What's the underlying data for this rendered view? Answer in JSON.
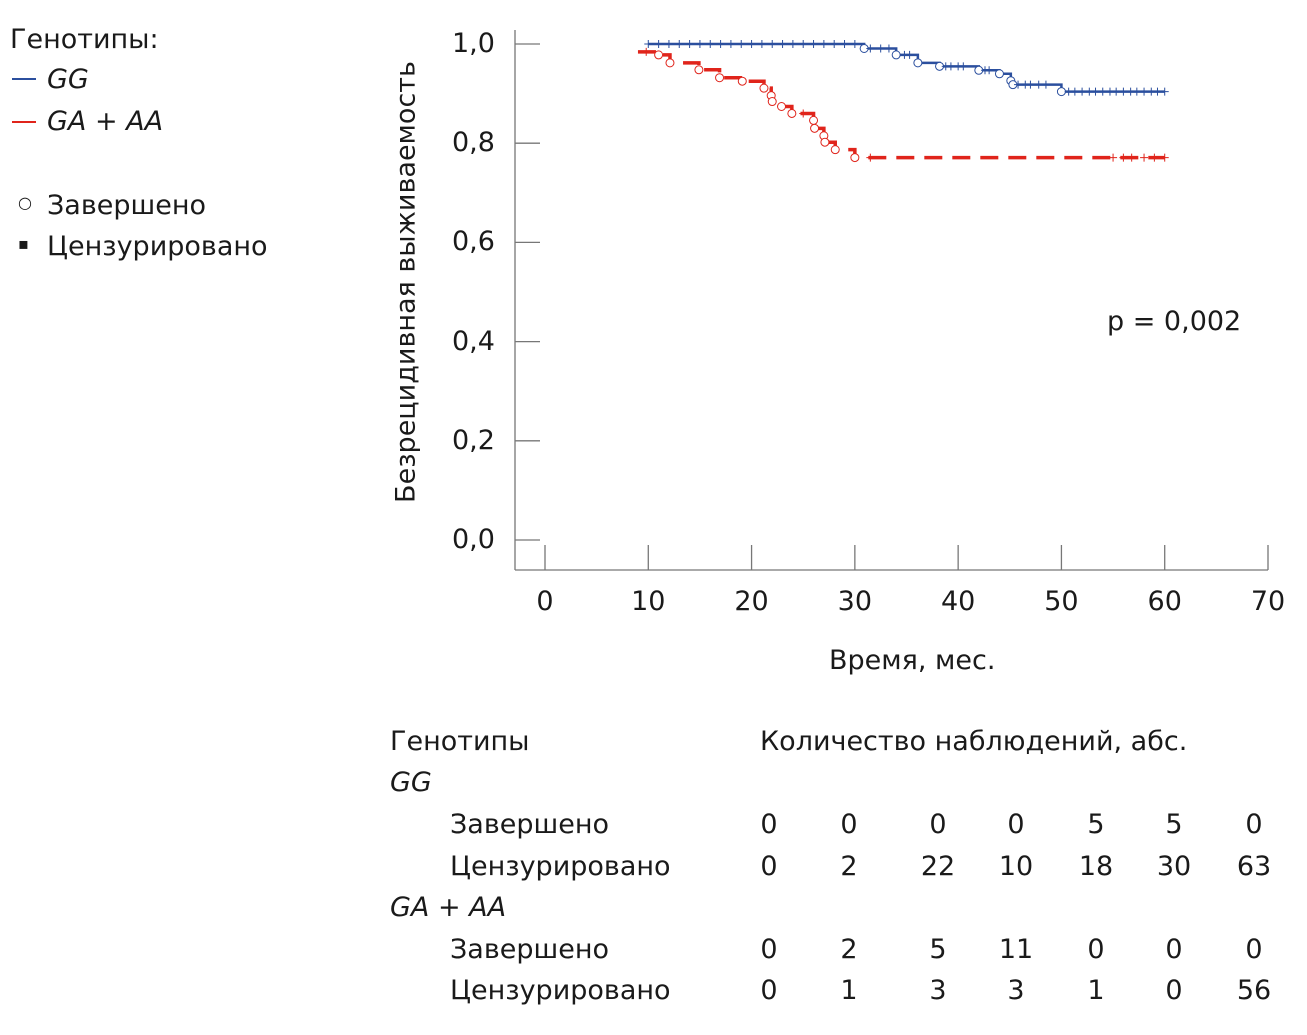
{
  "legend": {
    "title": "Генотипы:",
    "series": [
      {
        "label": "GG",
        "color": "#2b4f9e"
      },
      {
        "label": "GA + AA",
        "color": "#e0241b"
      }
    ],
    "markers": [
      {
        "symbol": "○",
        "label": "Завершено"
      },
      {
        "symbol": "▪",
        "label": "Цензурировано"
      }
    ]
  },
  "chart_data": {
    "type": "line",
    "subtype": "kaplan-meier step",
    "xlabel": "Время, мес.",
    "ylabel": "Безрецидивная выживаемость",
    "xlim": [
      0,
      70
    ],
    "ylim": [
      0,
      1
    ],
    "xticks": [
      "0",
      "10",
      "20",
      "30",
      "40",
      "50",
      "60",
      "70"
    ],
    "yticks": [
      "0,0",
      "0,2",
      "0,4",
      "0,6",
      "0,8",
      "1,0"
    ],
    "annotation": "p = 0,002",
    "grid": false,
    "series": [
      {
        "name": "GG",
        "color": "#2b4f9e",
        "start": [
          10,
          1.0
        ],
        "events": [
          [
            30.9,
            0.991
          ],
          [
            34.0,
            0.978
          ],
          [
            36.1,
            0.962
          ],
          [
            38.2,
            0.955
          ],
          [
            42.0,
            0.947
          ],
          [
            44.0,
            0.94
          ],
          [
            45.1,
            0.926
          ],
          [
            45.3,
            0.918
          ],
          [
            50.0,
            0.904
          ]
        ],
        "end": 60,
        "censored": [
          10,
          11,
          12,
          13,
          14,
          15,
          16,
          17,
          18,
          19,
          20,
          21,
          22,
          23,
          24,
          25,
          26,
          27,
          28,
          29,
          30,
          31.5,
          32.5,
          33.3,
          34.8,
          35.3,
          38.8,
          39.3,
          40,
          40.5,
          42.6,
          43,
          45.8,
          46.5,
          47,
          47.8,
          48.5,
          50.7,
          51.3,
          52,
          52.7,
          53.3,
          54,
          54.7,
          55.3,
          56,
          56.7,
          57.3,
          58,
          58.7,
          59.3,
          60
        ]
      },
      {
        "name": "GA + AA",
        "color": "#e0241b",
        "start": [
          9.0,
          0.984
        ],
        "events": [
          [
            11.0,
            0.978
          ],
          [
            12.1,
            0.962
          ],
          [
            14.9,
            0.948
          ],
          [
            16.9,
            0.932
          ],
          [
            19.1,
            0.925
          ],
          [
            21.2,
            0.911
          ],
          [
            21.9,
            0.896
          ],
          [
            22.0,
            0.884
          ],
          [
            22.9,
            0.874
          ],
          [
            23.9,
            0.86
          ],
          [
            26.0,
            0.846
          ],
          [
            26.1,
            0.83
          ],
          [
            27.0,
            0.815
          ],
          [
            27.1,
            0.802
          ],
          [
            28.1,
            0.787
          ],
          [
            30.0,
            0.771
          ]
        ],
        "end": 60,
        "censored": [
          9.8,
          25.0,
          31.5,
          55.0,
          56.0,
          56.8,
          58.0,
          59.0,
          60.0
        ]
      }
    ]
  },
  "table": {
    "header_group": "Генотипы",
    "header_counts": "Количество наблюдений, абс.",
    "groups": [
      {
        "name": "GG",
        "rows": [
          {
            "label": "Завершено",
            "values": [
              "0",
              "0",
              "0",
              "0",
              "5",
              "5",
              "0"
            ]
          },
          {
            "label": "Цензурировано",
            "values": [
              "0",
              "2",
              "22",
              "10",
              "18",
              "30",
              "63"
            ]
          }
        ]
      },
      {
        "name": "GA + AA",
        "rows": [
          {
            "label": "Завершено",
            "values": [
              "0",
              "2",
              "5",
              "11",
              "0",
              "0",
              "0"
            ]
          },
          {
            "label": "Цензурировано",
            "values": [
              "0",
              "1",
              "3",
              "3",
              "1",
              "0",
              "56"
            ]
          }
        ]
      }
    ]
  }
}
